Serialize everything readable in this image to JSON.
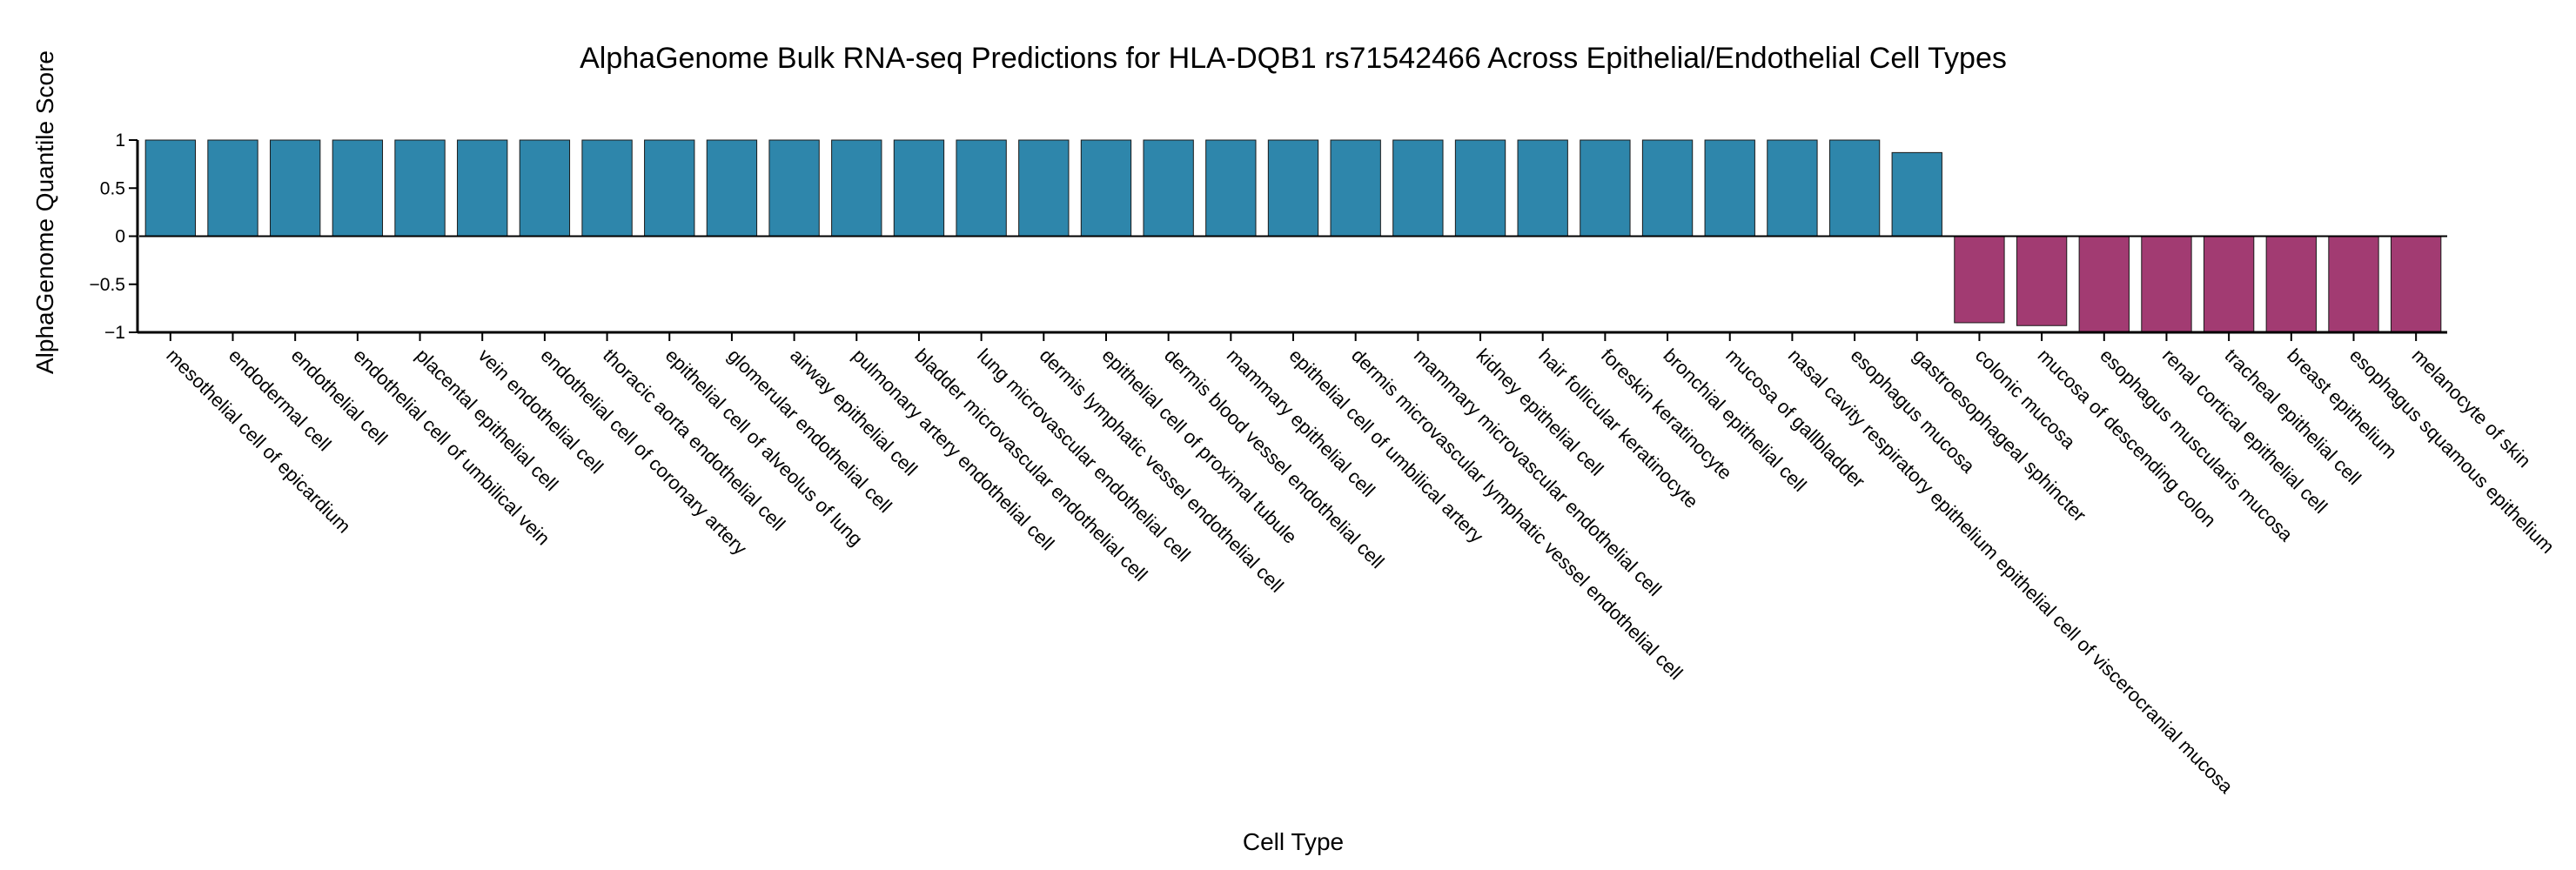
{
  "chart_data": {
    "type": "bar",
    "title": "AlphaGenome Bulk RNA-seq Predictions for HLA-DQB1 rs71542466 Across Epithelial/Endothelial Cell Types",
    "xlabel": "Cell Type",
    "ylabel": "AlphaGenome Quantile Score",
    "ylim": [
      -1,
      1
    ],
    "yticks": [
      1,
      0.5,
      0,
      -0.5,
      -1
    ],
    "ytick_labels": [
      "1",
      "0.5",
      "0",
      "−0.5",
      "−1"
    ],
    "grid": false,
    "legend": "none",
    "colors": {
      "positive": "#2e86ab",
      "negative": "#a23b72",
      "edge": "#1a1a1a"
    },
    "categories": [
      "mesothelial cell of epicardium",
      "endodermal cell",
      "endothelial cell",
      "endothelial cell of umbilical vein",
      "placental epithelial cell",
      "vein endothelial cell",
      "endothelial cell of coronary artery",
      "thoracic aorta endothelial cell",
      "epithelial cell of alveolus of lung",
      "glomerular endothelial cell",
      "airway epithelial cell",
      "pulmonary artery endothelial cell",
      "bladder microvascular endothelial cell",
      "lung microvascular endothelial cell",
      "dermis lymphatic vessel endothelial cell",
      "epithelial cell of proximal tubule",
      "dermis blood vessel endothelial cell",
      "mammary epithelial cell",
      "epithelial cell of umbilical artery",
      "dermis microvascular lymphatic vessel endothelial cell",
      "mammary microvascular endothelial cell",
      "kidney epithelial cell",
      "hair follicular keratinocyte",
      "foreskin keratinocyte",
      "bronchial epithelial cell",
      "mucosa of gallbladder",
      "nasal cavity respiratory epithelium epithelial cell of viscerocranial mucosa",
      "esophagus mucosa",
      "gastroesophageal sphincter",
      "colonic mucosa",
      "mucosa of descending colon",
      "esophagus muscularis mucosa",
      "renal cortical epithelial cell",
      "tracheal epithelial cell",
      "breast epithelium",
      "esophagus squamous epithelium",
      "melanocyte of skin"
    ],
    "values": [
      1,
      1,
      1,
      1,
      1,
      1,
      1,
      1,
      1,
      1,
      1,
      1,
      1,
      1,
      1,
      1,
      1,
      1,
      1,
      1,
      1,
      1,
      1,
      1,
      1,
      1,
      1,
      1,
      0.87,
      -0.9,
      -0.93,
      -1,
      -1,
      -1,
      -1,
      -1,
      -1
    ]
  }
}
